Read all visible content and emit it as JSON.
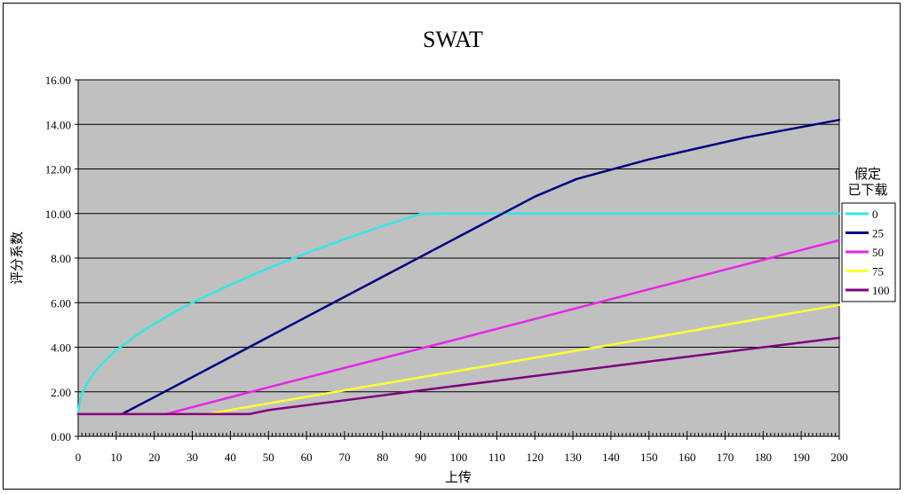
{
  "chart_data": {
    "type": "line",
    "title": "SWAT",
    "xlabel": "上传",
    "ylabel": "评分系数",
    "xlim": [
      0,
      200
    ],
    "ylim": [
      0,
      16
    ],
    "x_ticks": [
      "0",
      "10",
      "20",
      "30",
      "40",
      "50",
      "60",
      "70",
      "80",
      "90",
      "100",
      "110",
      "120",
      "130",
      "140",
      "150",
      "160",
      "170",
      "180",
      "190",
      "200"
    ],
    "y_ticks": [
      "0.00",
      "2.00",
      "4.00",
      "6.00",
      "8.00",
      "10.00",
      "12.00",
      "14.00",
      "16.00"
    ],
    "grid": "horizontal",
    "plot_background": "#c0c0c0",
    "legend": {
      "title_lines": [
        "假定",
        "已下载"
      ],
      "placement": "right"
    },
    "series": [
      {
        "name": "0",
        "color": "#33e6e6",
        "x": [
          0,
          0.5,
          1,
          2,
          4,
          6,
          8,
          10,
          15,
          20,
          25,
          30,
          40,
          50,
          60,
          70,
          80,
          90,
          98,
          100,
          150,
          200
        ],
        "y": [
          1.0,
          1.64,
          1.9,
          2.27,
          2.8,
          3.2,
          3.55,
          3.86,
          4.5,
          5.05,
          5.55,
          6.0,
          6.8,
          7.55,
          8.22,
          8.85,
          9.44,
          9.98,
          10.0,
          10.0,
          10.0,
          10.0
        ]
      },
      {
        "name": "25",
        "color": "#000080",
        "x": [
          0,
          11.5,
          20,
          40,
          60,
          80,
          100,
          120,
          131,
          150,
          175,
          200
        ],
        "y": [
          1.0,
          1.0,
          1.76,
          3.56,
          5.36,
          7.16,
          8.96,
          10.76,
          11.55,
          12.43,
          13.4,
          14.2
        ]
      },
      {
        "name": "50",
        "color": "#e626e6",
        "x": [
          0,
          23,
          50,
          100,
          150,
          200
        ],
        "y": [
          1.0,
          1.0,
          2.2,
          4.38,
          6.6,
          8.8
        ]
      },
      {
        "name": "75",
        "color": "#ffff33",
        "x": [
          0,
          34,
          50,
          100,
          150,
          200
        ],
        "y": [
          1.0,
          1.0,
          1.48,
          2.94,
          4.4,
          5.9
        ]
      },
      {
        "name": "100",
        "color": "#800080",
        "x": [
          0,
          45,
          50,
          100,
          150,
          200
        ],
        "y": [
          1.0,
          1.0,
          1.18,
          2.28,
          3.36,
          4.42
        ]
      }
    ]
  }
}
